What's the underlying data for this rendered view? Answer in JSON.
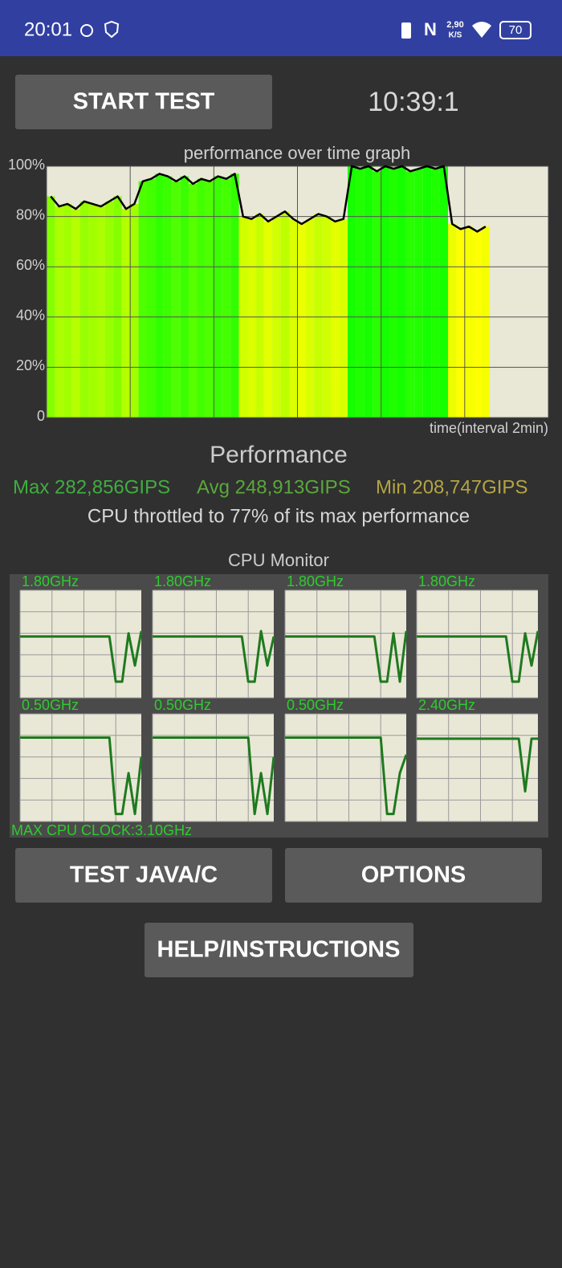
{
  "status_bar": {
    "time": "20:01",
    "net_speed": "2,90",
    "net_unit": "K/S",
    "battery": "70"
  },
  "buttons": {
    "start_test": "START TEST",
    "test_java": "TEST JAVA/C",
    "options": "OPTIONS",
    "help": "HELP/INSTRUCTIONS"
  },
  "timer": "10:39:1",
  "performance": {
    "heading": "Performance",
    "max": "Max 282,856GIPS",
    "avg": "Avg 248,913GIPS",
    "min": "Min 208,747GIPS",
    "throttle": "CPU throttled to 77% of its max performance"
  },
  "chart_data": [
    {
      "type": "line",
      "title": "performance over time graph",
      "x_label": "time(interval 2min)",
      "color": "#000000",
      "x": [
        0,
        1,
        2,
        3,
        4,
        5,
        6,
        7,
        8,
        9,
        10,
        11,
        12,
        13,
        14,
        15,
        16,
        17,
        18,
        19,
        20,
        21,
        22,
        23,
        24,
        25,
        26,
        27,
        28,
        29,
        30,
        31,
        32,
        33,
        34,
        35,
        36,
        37,
        38,
        39,
        40,
        41,
        42,
        43,
        44,
        45,
        46,
        47,
        48,
        49,
        50,
        51,
        52
      ],
      "values": [
        88,
        84,
        85,
        83,
        86,
        85,
        84,
        86,
        88,
        83,
        85,
        94,
        95,
        97,
        96,
        94,
        96,
        93,
        95,
        94,
        96,
        95,
        97,
        80,
        79,
        81,
        78,
        80,
        82,
        79,
        77,
        79,
        81,
        80,
        78,
        79,
        100,
        99,
        100,
        98,
        100,
        99,
        100,
        98,
        99,
        100,
        99,
        100,
        77,
        75,
        76,
        74,
        76
      ],
      "xlim": [
        0,
        60
      ],
      "xticks": [
        0,
        10,
        20,
        30,
        40,
        50,
        60
      ],
      "ylim": [
        0,
        100
      ],
      "yticks": [
        0,
        {
          "value": 20,
          "label": "20%"
        },
        {
          "value": 40,
          "label": "40%"
        },
        {
          "value": 60,
          "label": "60%"
        },
        {
          "value": 80,
          "label": "80%"
        },
        {
          "value": 100,
          "label": "100%"
        }
      ],
      "grid": true
    },
    {
      "type": "small-multiples",
      "title": "CPU Monitor",
      "footer": "MAX CPU CLOCK:3.10GHz",
      "color": "#1e7a1e",
      "x": [
        0,
        1,
        2,
        3,
        4,
        5,
        6,
        7,
        8,
        9,
        10,
        11,
        12,
        13,
        14,
        15,
        16,
        17,
        18,
        19
      ],
      "xlim": [
        0,
        19
      ],
      "xticks": [
        0,
        5,
        10,
        15
      ],
      "ylim": [
        0,
        100
      ],
      "yticks": [
        0,
        20,
        40,
        60,
        80,
        100
      ],
      "grid": true,
      "series": [
        {
          "name": "1.80GHz",
          "values": [
            57,
            57,
            57,
            57,
            57,
            57,
            57,
            57,
            57,
            57,
            57,
            57,
            57,
            57,
            57,
            15,
            15,
            60,
            30,
            62
          ]
        },
        {
          "name": "1.80GHz",
          "values": [
            57,
            57,
            57,
            57,
            57,
            57,
            57,
            57,
            57,
            57,
            57,
            57,
            57,
            57,
            57,
            15,
            15,
            62,
            30,
            57
          ]
        },
        {
          "name": "1.80GHz",
          "values": [
            57,
            57,
            57,
            57,
            57,
            57,
            57,
            57,
            57,
            57,
            57,
            57,
            57,
            57,
            57,
            15,
            15,
            60,
            15,
            62
          ]
        },
        {
          "name": "1.80GHz",
          "values": [
            57,
            57,
            57,
            57,
            57,
            57,
            57,
            57,
            57,
            57,
            57,
            57,
            57,
            57,
            57,
            15,
            15,
            60,
            30,
            62
          ]
        },
        {
          "name": "0.50GHz",
          "values": [
            78,
            78,
            78,
            78,
            78,
            78,
            78,
            78,
            78,
            78,
            78,
            78,
            78,
            78,
            78,
            7,
            7,
            45,
            7,
            60
          ]
        },
        {
          "name": "0.50GHz",
          "values": [
            78,
            78,
            78,
            78,
            78,
            78,
            78,
            78,
            78,
            78,
            78,
            78,
            78,
            78,
            78,
            78,
            7,
            45,
            7,
            60
          ]
        },
        {
          "name": "0.50GHz",
          "values": [
            78,
            78,
            78,
            78,
            78,
            78,
            78,
            78,
            78,
            78,
            78,
            78,
            78,
            78,
            78,
            78,
            7,
            7,
            45,
            62
          ]
        },
        {
          "name": "2.40GHz",
          "values": [
            77,
            77,
            77,
            77,
            77,
            77,
            77,
            77,
            77,
            77,
            77,
            77,
            77,
            77,
            77,
            77,
            77,
            28,
            77,
            77
          ]
        }
      ]
    }
  ]
}
